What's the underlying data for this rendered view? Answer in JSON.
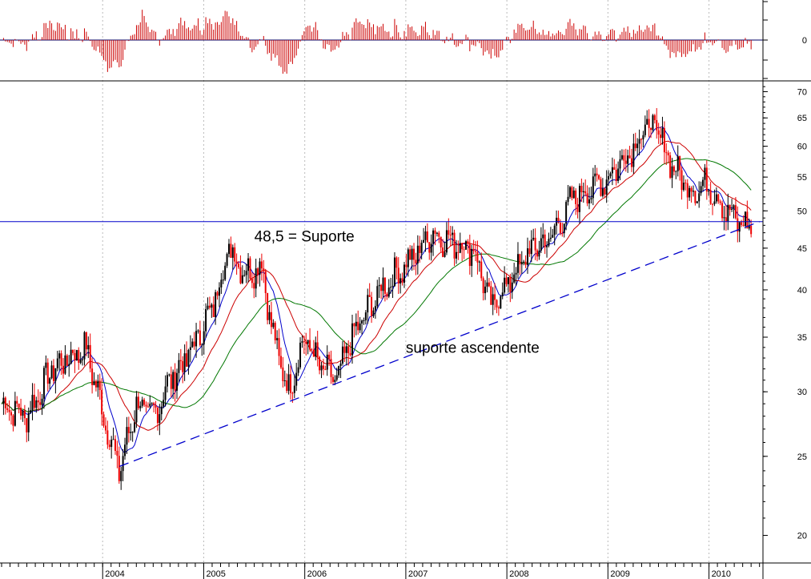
{
  "chart_data": {
    "type": "candlestick",
    "scale": "log",
    "grid": "vertical dotted at year boundaries",
    "ylim": [
      18.5,
      72
    ],
    "xlim": [
      "2003-01",
      "2010-07"
    ],
    "y_ticks": [
      "70",
      "65",
      "60",
      "55",
      "50",
      "45",
      "40",
      "35",
      "30",
      "25",
      "20"
    ],
    "x_ticks": [
      "2004",
      "2005",
      "2006",
      "2007",
      "2008",
      "2009",
      "2010"
    ],
    "oscillator": {
      "zero_label": "0",
      "color": "#cc0000"
    },
    "series": [
      {
        "name": "",
        "color": "#0000cc",
        "kind": "moving-average-short"
      },
      {
        "name": "",
        "color": "#cc0000",
        "kind": "moving-average-mid"
      },
      {
        "name": "",
        "color": "#007700",
        "kind": "moving-average-long"
      }
    ],
    "price_waypoints": [
      [
        "2003-01",
        29
      ],
      [
        "2003-04",
        28
      ],
      [
        "2003-07",
        32
      ],
      [
        "2003-09",
        33
      ],
      [
        "2003-11",
        34
      ],
      [
        "2004-02",
        26
      ],
      [
        "2004-03",
        24
      ],
      [
        "2004-05",
        29
      ],
      [
        "2004-07",
        28
      ],
      [
        "2004-09",
        31
      ],
      [
        "2004-11",
        33
      ],
      [
        "2005-02",
        38
      ],
      [
        "2005-04",
        45
      ],
      [
        "2005-06",
        42
      ],
      [
        "2005-08",
        43
      ],
      [
        "2005-09",
        36
      ],
      [
        "2005-10",
        33
      ],
      [
        "2005-11",
        30
      ],
      [
        "2006-01",
        35
      ],
      [
        "2006-03",
        32
      ],
      [
        "2006-05",
        31
      ],
      [
        "2006-06",
        34
      ],
      [
        "2006-08",
        37
      ],
      [
        "2006-10",
        40
      ],
      [
        "2006-12",
        42
      ],
      [
        "2007-02",
        44
      ],
      [
        "2007-04",
        47
      ],
      [
        "2007-06",
        46
      ],
      [
        "2007-09",
        45
      ],
      [
        "2007-10",
        42
      ],
      [
        "2007-11",
        38
      ],
      [
        "2008-02",
        42
      ],
      [
        "2008-04",
        45
      ],
      [
        "2008-06",
        46
      ],
      [
        "2008-09",
        52
      ],
      [
        "2008-12",
        54
      ],
      [
        "2009-01",
        55
      ],
      [
        "2009-04",
        60
      ],
      [
        "2009-06",
        64
      ],
      [
        "2009-07",
        62
      ],
      [
        "2009-09",
        56
      ],
      [
        "2009-11",
        53
      ],
      [
        "2010-01",
        54
      ],
      [
        "2010-03",
        50
      ],
      [
        "2010-05",
        48
      ]
    ],
    "annotations": {
      "support_level": {
        "value": 48.5,
        "label": "48,5 = Suporte",
        "color": "#0000cc"
      },
      "trendline": {
        "label": "suporte ascendente",
        "from": [
          "2004-03",
          24.3
        ],
        "to": [
          "2010-07",
          48.5
        ],
        "style": "dashed",
        "color": "#0000cc"
      }
    }
  }
}
